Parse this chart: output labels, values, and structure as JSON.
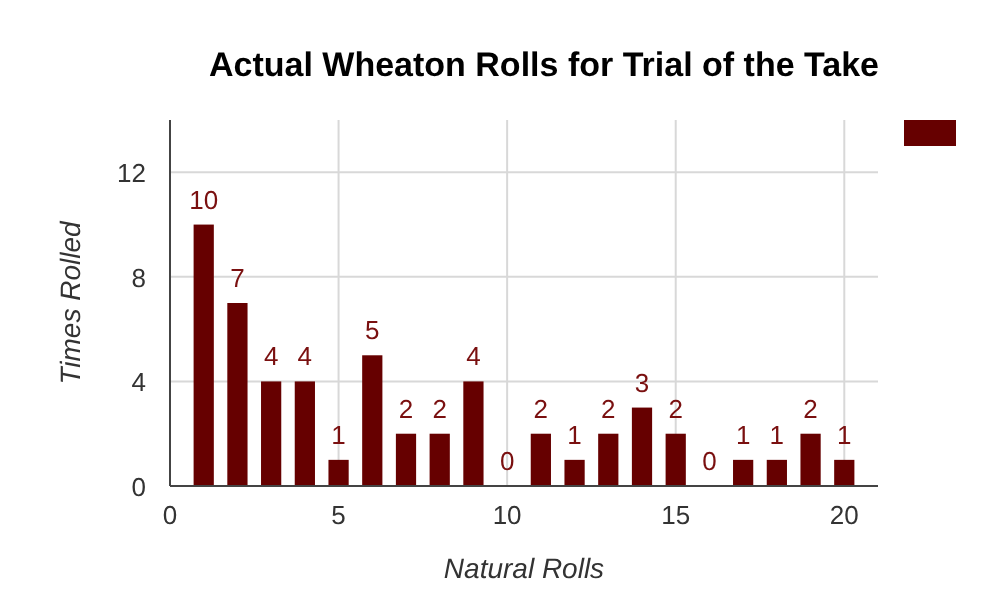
{
  "chart_data": {
    "type": "bar",
    "title": "Actual Wheaton Rolls for Trial of the Take",
    "xlabel": "Natural Rolls",
    "ylabel": "Times Rolled",
    "x": [
      1,
      2,
      3,
      4,
      5,
      6,
      7,
      8,
      9,
      10,
      11,
      12,
      13,
      14,
      15,
      16,
      17,
      18,
      19,
      20
    ],
    "series": [
      {
        "color": "#660000",
        "values": [
          10,
          7,
          4,
          4,
          1,
          5,
          2,
          2,
          4,
          0,
          2,
          1,
          2,
          3,
          2,
          0,
          1,
          1,
          2,
          1
        ]
      }
    ],
    "xlim": [
      0,
      21
    ],
    "xticks": [
      0,
      5,
      10,
      15,
      20
    ],
    "ylim": [
      0,
      14
    ],
    "yticks": [
      0,
      4,
      8,
      12
    ],
    "grid": true,
    "data_labels": true
  }
}
